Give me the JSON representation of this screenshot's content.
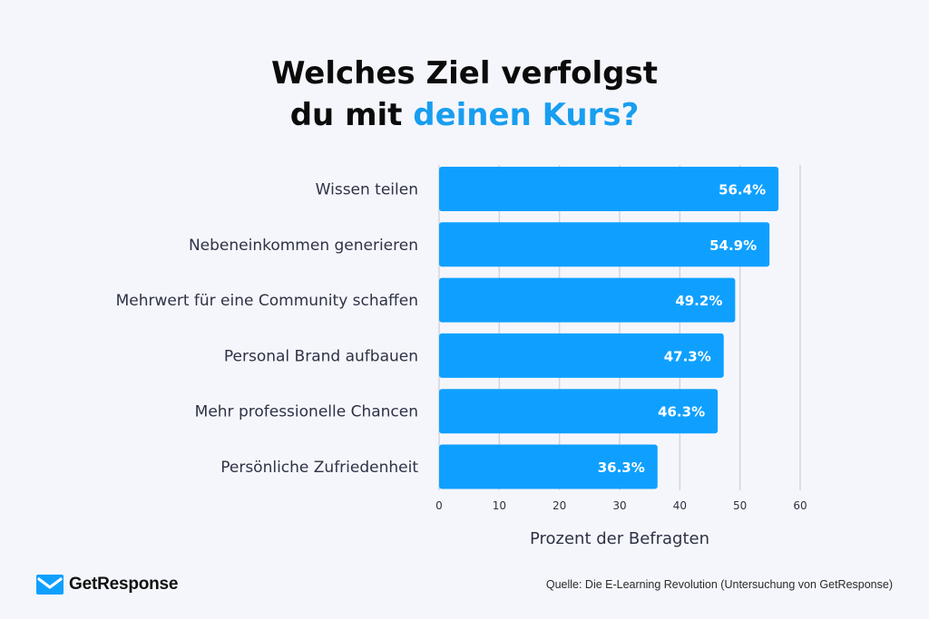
{
  "title": {
    "line1": "Welches Ziel verfolgst",
    "line2_plain": "du mit ",
    "line2_accent": "deinen Kurs?"
  },
  "colors": {
    "bar": "#0fa0ff",
    "accent": "#189ef0",
    "grid": "#d3d6de",
    "label": "#2e3245",
    "value_text": "#ffffff"
  },
  "chart_data": {
    "type": "bar",
    "orientation": "horizontal",
    "categories": [
      "Wissen teilen",
      "Nebeneinkommen generieren",
      "Mehrwert für eine Community schaffen",
      "Personal Brand aufbauen",
      "Mehr professionelle Chancen",
      "Persönliche Zufriedenheit"
    ],
    "values": [
      56.4,
      54.9,
      49.2,
      47.3,
      46.3,
      36.3
    ],
    "value_labels": [
      "56.4%",
      "54.9%",
      "49.2%",
      "47.3%",
      "46.3%",
      "36.3%"
    ],
    "xlim": [
      0,
      60
    ],
    "x_ticks": [
      0,
      10,
      20,
      30,
      40,
      50,
      60
    ],
    "xlabel": "Prozent der Befragten",
    "grid": true
  },
  "footer": {
    "brand": "GetResponse",
    "brand_icon": "envelope-icon",
    "source": "Quelle: Die E-Learning Revolution (Untersuchung von GetResponse)"
  }
}
